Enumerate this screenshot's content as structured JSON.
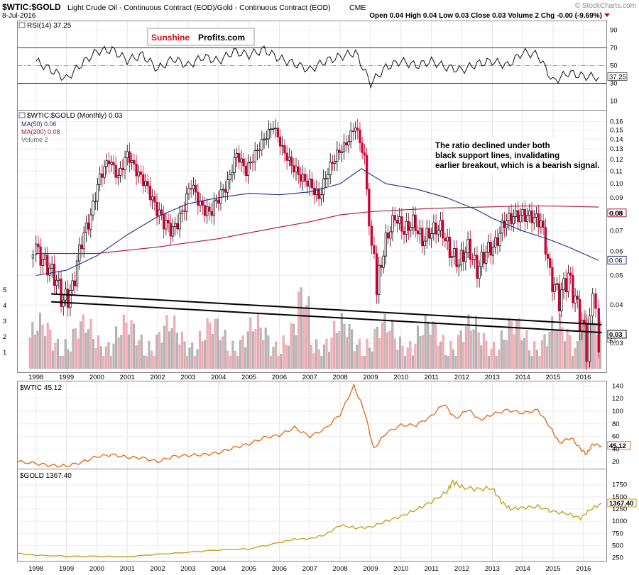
{
  "header": {
    "symbol": "$WTIC:$GOLD",
    "description": "Light Crude Oil - Continuous Contract (EOD)/Gold - Continuous Contract (EOD)",
    "exchange": "CME",
    "date": "8-Jul-2016",
    "ohlc": "Open 0.04  High 0.04  Low 0.03  Close 0.03  Volume 2  Chg -0.00 (-9.69%)",
    "watermark": "© StockCharts.com",
    "logo_left": "Sunshine",
    "logo_right": "Profits.com"
  },
  "colors": {
    "up_candle": "#000000",
    "down_candle": "#cc0033",
    "ma50": "#1f2e8c",
    "ma200": "#b0103c",
    "wtic": "#e07020",
    "gold": "#c8a020",
    "volume_up": "#b8b8b8",
    "volume_down": "#f2b0b8"
  },
  "chart_data": [
    {
      "type": "line",
      "panel": "rsi",
      "label": "RSI(14) 37.25",
      "last_value": "37.25",
      "yticks": [
        "90",
        "70",
        "50",
        "30",
        "10"
      ],
      "levels": [
        70,
        50,
        30
      ],
      "ylim": [
        0,
        100
      ],
      "x": [
        1998.0,
        1998.5,
        1999.0,
        1999.5,
        2000.0,
        2000.5,
        2001.0,
        2001.5,
        2002.0,
        2002.5,
        2003.0,
        2003.5,
        2004.0,
        2004.5,
        2005.0,
        2005.5,
        2006.0,
        2006.5,
        2007.0,
        2007.5,
        2008.0,
        2008.5,
        2009.0,
        2009.5,
        2010.0,
        2010.5,
        2011.0,
        2011.5,
        2012.0,
        2012.5,
        2013.0,
        2013.5,
        2014.0,
        2014.5,
        2015.0,
        2015.5,
        2016.0,
        2016.5
      ],
      "values": [
        55,
        45,
        35,
        52,
        66,
        68,
        56,
        62,
        46,
        58,
        50,
        60,
        55,
        66,
        62,
        68,
        58,
        52,
        45,
        55,
        60,
        65,
        30,
        48,
        55,
        50,
        55,
        48,
        45,
        52,
        55,
        50,
        65,
        62,
        32,
        42,
        38,
        37.25
      ]
    },
    {
      "type": "candlestick",
      "panel": "ratio",
      "title": "$WTIC:$GOLD (Monthly) 0.03",
      "legend": [
        "$WTIC:$GOLD (Monthly) 0.03",
        "MA(50) 0.06",
        "MA(200) 0.08",
        "Volume 2"
      ],
      "yticks": [
        "0.16",
        "0.15",
        "0.14",
        "0.13",
        "0.12",
        "0.11",
        "0.10",
        "0.09",
        "0.08",
        "0.07",
        "0.06",
        "0.05",
        "0.04",
        "0.03"
      ],
      "ylim": [
        0.025,
        0.17
      ],
      "last_value": "0.03",
      "ma50_label": "0.06",
      "ma200_label": "0.08",
      "volume_last": "2",
      "volume_ticks": [
        "5",
        "4",
        "3",
        "2",
        "1"
      ],
      "ratio_x": [
        1997.8,
        1998.0,
        1998.3,
        1998.6,
        1998.9,
        1999.2,
        1999.5,
        1999.8,
        2000.1,
        2000.4,
        2000.7,
        2001.0,
        2001.3,
        2001.6,
        2001.9,
        2002.2,
        2002.5,
        2002.8,
        2003.1,
        2003.4,
        2003.7,
        2004.0,
        2004.3,
        2004.6,
        2004.9,
        2005.2,
        2005.5,
        2005.8,
        2006.1,
        2006.4,
        2006.7,
        2007.0,
        2007.3,
        2007.6,
        2007.9,
        2008.2,
        2008.5,
        2008.8,
        2008.95,
        2009.2,
        2009.5,
        2009.8,
        2010.1,
        2010.4,
        2010.7,
        2011.0,
        2011.3,
        2011.6,
        2011.9,
        2012.2,
        2012.5,
        2012.8,
        2013.1,
        2013.4,
        2013.7,
        2014.0,
        2014.3,
        2014.6,
        2014.9,
        2015.2,
        2015.5,
        2015.8,
        2016.1,
        2016.3,
        2016.5
      ],
      "ratio_values": [
        0.057,
        0.06,
        0.055,
        0.05,
        0.041,
        0.045,
        0.065,
        0.078,
        0.105,
        0.12,
        0.105,
        0.125,
        0.11,
        0.1,
        0.085,
        0.075,
        0.07,
        0.08,
        0.1,
        0.085,
        0.08,
        0.09,
        0.1,
        0.125,
        0.11,
        0.125,
        0.14,
        0.155,
        0.13,
        0.115,
        0.105,
        0.1,
        0.09,
        0.11,
        0.125,
        0.135,
        0.155,
        0.12,
        0.075,
        0.045,
        0.065,
        0.078,
        0.07,
        0.075,
        0.065,
        0.07,
        0.072,
        0.06,
        0.055,
        0.062,
        0.052,
        0.06,
        0.063,
        0.075,
        0.078,
        0.079,
        0.078,
        0.075,
        0.05,
        0.042,
        0.05,
        0.039,
        0.03,
        0.041,
        0.032
      ],
      "ma50_x": [
        1998.0,
        1999.0,
        2000.0,
        2001.0,
        2002.0,
        2003.0,
        2004.0,
        2005.0,
        2006.0,
        2007.0,
        2008.0,
        2008.7,
        2009.5,
        2010.5,
        2011.5,
        2012.5,
        2013.0,
        2014.0,
        2014.8,
        2015.5,
        2016.5
      ],
      "ma50_values": [
        0.05,
        0.052,
        0.058,
        0.068,
        0.078,
        0.086,
        0.09,
        0.093,
        0.092,
        0.094,
        0.1,
        0.112,
        0.1,
        0.096,
        0.09,
        0.082,
        0.077,
        0.07,
        0.066,
        0.062,
        0.056
      ],
      "ma200_x": [
        1998.0,
        2000.0,
        2002.0,
        2003.0,
        2004.0,
        2005.0,
        2006.0,
        2007.0,
        2008.0,
        2009.0,
        2010.0,
        2011.0,
        2012.0,
        2013.0,
        2014.0,
        2015.0,
        2016.5
      ],
      "ma200_values": [
        0.059,
        0.059,
        0.062,
        0.064,
        0.066,
        0.069,
        0.072,
        0.075,
        0.079,
        0.081,
        0.082,
        0.083,
        0.0835,
        0.084,
        0.0845,
        0.0845,
        0.0838
      ],
      "support_lines": [
        {
          "x": [
            1998.5,
            2016.6
          ],
          "values": [
            0.0435,
            0.0345
          ]
        },
        {
          "x": [
            1998.5,
            2016.6
          ],
          "values": [
            0.041,
            0.0325
          ]
        }
      ],
      "annotation": "The ratio declined under both black support lines, invalidating earlier breakout, which is a bearish signal."
    },
    {
      "type": "line",
      "panel": "wtic",
      "title": "$WTIC 45.12",
      "last_value": "45.12",
      "yticks": [
        "140",
        "120",
        "100",
        "80",
        "60",
        "40",
        "20"
      ],
      "ylim": [
        10,
        145
      ],
      "x": [
        1997.4,
        1998.0,
        1998.5,
        1999.0,
        1999.5,
        2000.0,
        2000.5,
        2001.0,
        2001.5,
        2002.0,
        2002.5,
        2003.0,
        2003.5,
        2004.0,
        2004.5,
        2005.0,
        2005.5,
        2006.0,
        2006.5,
        2007.0,
        2007.5,
        2008.0,
        2008.45,
        2008.8,
        2009.1,
        2009.5,
        2010.0,
        2010.5,
        2011.0,
        2011.4,
        2011.8,
        2012.2,
        2012.6,
        2013.0,
        2013.5,
        2014.0,
        2014.5,
        2014.9,
        2015.2,
        2015.6,
        2015.9,
        2016.1,
        2016.3,
        2016.6
      ],
      "values": [
        20,
        17,
        14,
        13,
        19,
        28,
        31,
        27,
        26,
        20,
        28,
        30,
        31,
        34,
        42,
        48,
        58,
        62,
        74,
        60,
        72,
        95,
        140,
        100,
        40,
        65,
        78,
        78,
        92,
        112,
        88,
        103,
        86,
        95,
        102,
        97,
        102,
        75,
        50,
        58,
        40,
        32,
        48,
        45.12
      ]
    },
    {
      "type": "line",
      "panel": "gold",
      "title": "$GOLD 1367.40",
      "last_value": "1367.40",
      "yticks": [
        "1750",
        "1500",
        "1250",
        "1000",
        "750",
        "500",
        "250"
      ],
      "ylim": [
        200,
        1950
      ],
      "x": [
        1997.4,
        1998.0,
        1999.0,
        2000.0,
        2001.0,
        2002.0,
        2003.0,
        2004.0,
        2005.0,
        2006.0,
        2006.5,
        2007.0,
        2007.5,
        2008.0,
        2008.5,
        2009.0,
        2009.5,
        2010.0,
        2010.5,
        2011.0,
        2011.5,
        2011.7,
        2012.0,
        2012.5,
        2013.0,
        2013.3,
        2013.6,
        2014.0,
        2014.5,
        2015.0,
        2015.5,
        2015.9,
        2016.2,
        2016.6
      ],
      "values": [
        340,
        300,
        280,
        280,
        270,
        320,
        360,
        410,
        430,
        560,
        630,
        640,
        720,
        920,
        860,
        880,
        1000,
        1100,
        1240,
        1400,
        1600,
        1820,
        1700,
        1660,
        1680,
        1400,
        1250,
        1280,
        1300,
        1200,
        1150,
        1060,
        1230,
        1367.4
      ]
    }
  ],
  "xaxis": {
    "years": [
      "1998",
      "1999",
      "2000",
      "2001",
      "2002",
      "2003",
      "2004",
      "2005",
      "2006",
      "2007",
      "2008",
      "2009",
      "2010",
      "2011",
      "2012",
      "2013",
      "2014",
      "2015",
      "2016"
    ]
  }
}
